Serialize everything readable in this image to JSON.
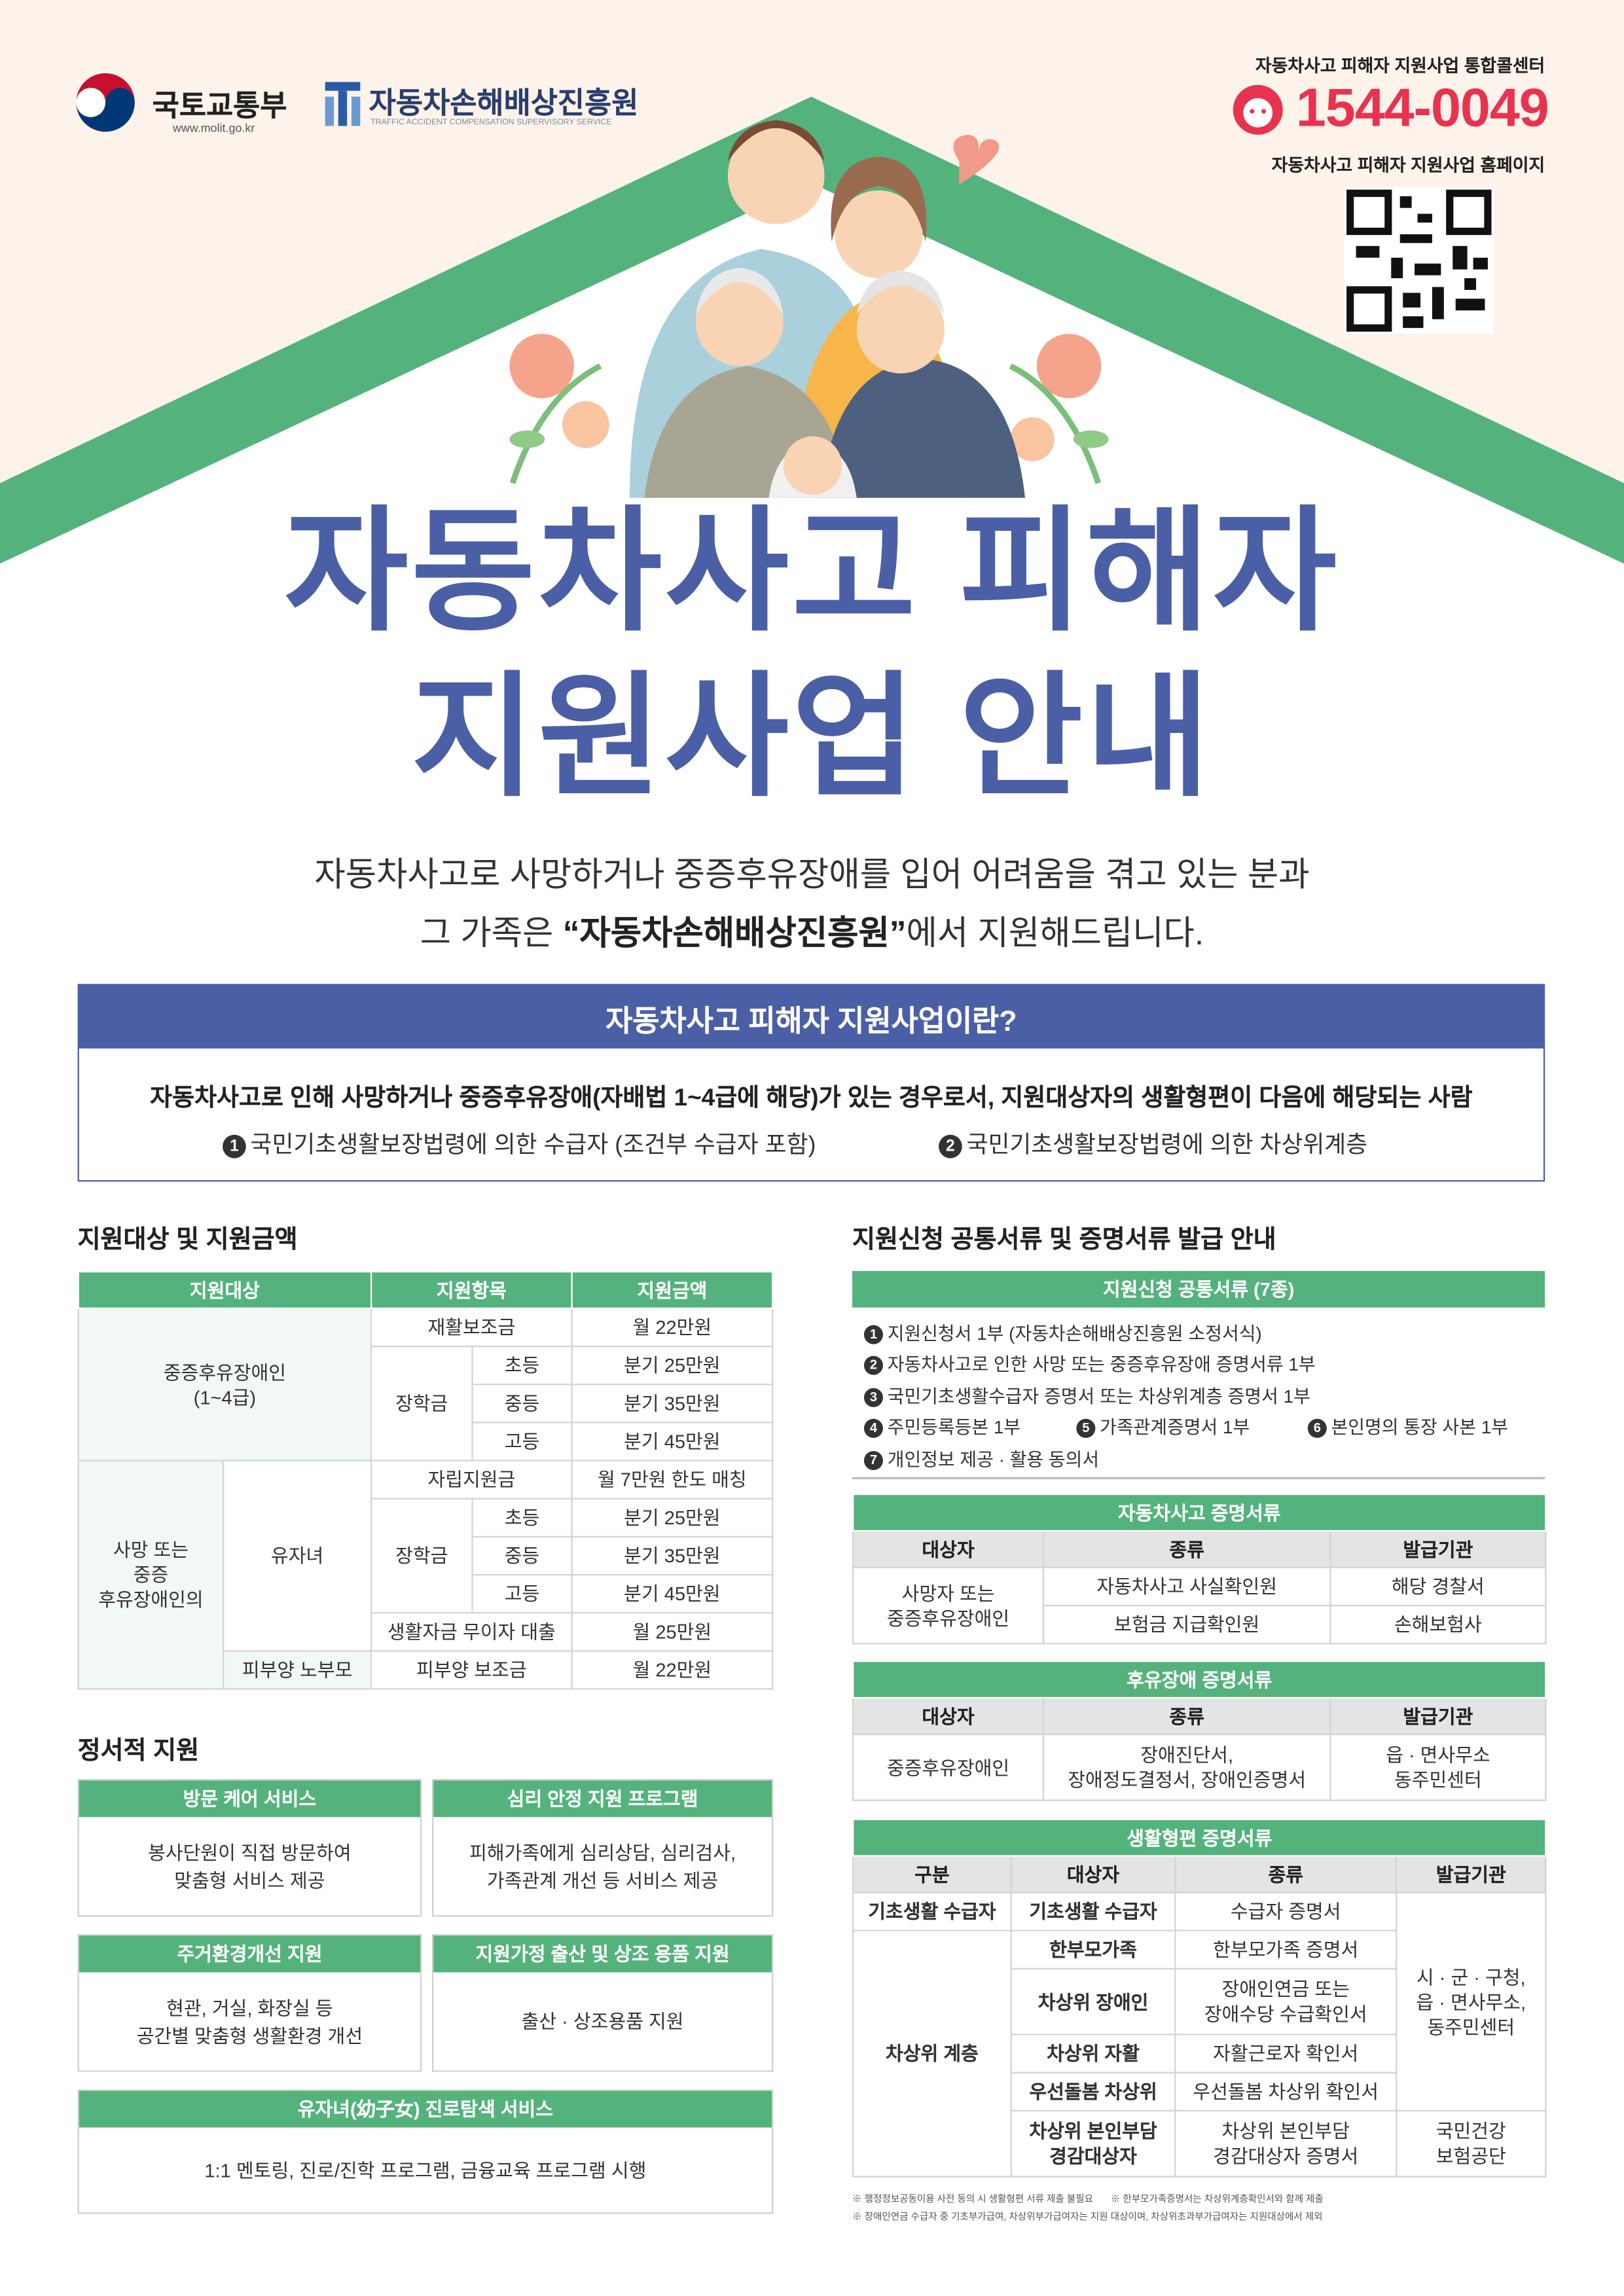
{
  "header": {
    "ministry": "국토교통부",
    "ministry_url": "www.molit.go.kr",
    "agency": "자동차손해배상진흥원",
    "agency_en": "TRAFFIC ACCIDENT COMPENSATION SUPERVISORY SERVICE",
    "callcenter_label": "자동차사고 피해자 지원사업 통합콜센터",
    "phone": "1544-0049",
    "homepage_label": "자동차사고 피해자 지원사업 홈페이지"
  },
  "title": {
    "line1": "자동차사고 피해자",
    "line2": "지원사업 안내"
  },
  "intro": {
    "line1": "자동차사고로 사망하거나 중증후유장애를 입어 어려움을 겪고 있는 분과",
    "line2_prefix": "그 가족은 ",
    "line2_emphasis": "“자동차손해배상진흥원”",
    "line2_suffix": "에서 지원해드립니다."
  },
  "definition": {
    "heading": "자동차사고 피해자 지원사업이란?",
    "text": "자동차사고로 인해 사망하거나 중증후유장애(자배법 1~4급에 해당)가 있는 경우로서, 지원대상자의 생활형편이 다음에  해당되는 사람",
    "items": [
      {
        "number": "1",
        "text": "국민기초생활보장법령에 의한 수급자 (조건부 수급자 포함)"
      },
      {
        "number": "2",
        "text": "국민기초생활보장법령에 의한 차상위계층"
      }
    ]
  },
  "support": {
    "heading": "지원대상 및 지원금액",
    "columns": [
      "지원대상",
      "지원항목",
      "지원금액"
    ],
    "severe": {
      "target": [
        "중증후유장애인",
        "(1~4급)"
      ],
      "rehab": {
        "item": "재활보조금",
        "amount": "월 22만원"
      },
      "scholarship": {
        "item": "장학금",
        "levels": [
          {
            "level": "초등",
            "amount": "분기 25만원"
          },
          {
            "level": "중등",
            "amount": "분기 35만원"
          },
          {
            "level": "고등",
            "amount": "분기 45만원"
          }
        ]
      }
    },
    "bereaved": {
      "target": [
        "사망 또는",
        "중증",
        "후유장애인의"
      ],
      "child": {
        "label": "유자녀",
        "independence": {
          "item": "자립지원금",
          "amount": "월 7만원 한도 매칭"
        },
        "scholarship": {
          "item": "장학금",
          "levels": [
            {
              "level": "초등",
              "amount": "분기 25만원"
            },
            {
              "level": "중등",
              "amount": "분기 35만원"
            },
            {
              "level": "고등",
              "amount": "분기 45만원"
            }
          ]
        },
        "loan": {
          "item": "생활자금 무이자 대출",
          "amount": "월 25만원"
        }
      },
      "parents": {
        "label": "피부양 노부모",
        "item": "피부양 보조금",
        "amount": "월 22만원"
      }
    }
  },
  "emotional": {
    "heading": "정서적 지원",
    "cards": [
      {
        "title": "방문 케어 서비스",
        "lines": [
          "봉사단원이 직접 방문하여",
          "맞춤형 서비스 제공"
        ]
      },
      {
        "title": "심리 안정 지원 프로그램",
        "lines": [
          "피해가족에게 심리상담, 심리검사,",
          "가족관계 개선 등 서비스 제공"
        ]
      },
      {
        "title": "주거환경개선 지원",
        "lines": [
          "현관, 거실, 화장실 등",
          "공간별 맞춤형 생활환경 개선"
        ]
      },
      {
        "title": "지원가정 출산 및 상조 용품 지원",
        "lines": [
          "출산 · 상조용품 지원"
        ]
      },
      {
        "title": "유자녀(幼子女) 진로탐색 서비스",
        "lines": [
          "1:1 멘토링, 진로/진학 프로그램, 금융교육 프로그램 시행"
        ]
      }
    ]
  },
  "documents": {
    "heading": "지원신청 공통서류 및 증명서류 발급 안내",
    "common": {
      "title": "지원신청 공통서류 (7종)",
      "items": [
        {
          "number": "1",
          "text": "지원신청서 1부 (자동차손해배상진흥원 소정서식)"
        },
        {
          "number": "2",
          "text": "자동차사고로 인한 사망 또는 중증후유장애 증명서류 1부"
        },
        {
          "number": "3",
          "text": "국민기초생활수급자 증명서 또는 차상위계층 증명서 1부"
        },
        {
          "number": "4",
          "text": "주민등록등본 1부"
        },
        {
          "number": "5",
          "text": "가족관계증명서 1부"
        },
        {
          "number": "6",
          "text": "본인명의 통장 사본 1부"
        },
        {
          "number": "7",
          "text": "개인정보 제공 · 활용 동의서"
        }
      ]
    },
    "accident": {
      "title": "자동차사고 증명서류",
      "columns": [
        "대상자",
        "종류",
        "발급기관"
      ],
      "target": [
        "사망자 또는",
        "중증후유장애인"
      ],
      "rows": [
        {
          "doc": "자동차사고 사실확인원",
          "issuer": "해당 경찰서"
        },
        {
          "doc": "보험금 지급확인원",
          "issuer": "손해보험사"
        }
      ]
    },
    "disability": {
      "title": "후유장애 증명서류",
      "columns": [
        "대상자",
        "종류",
        "발급기관"
      ],
      "target": "중증후유장애인",
      "doc": [
        "장애진단서,",
        "장애정도결정서, 장애인증명서"
      ],
      "issuer": [
        "읍 · 면사무소",
        "동주민센터"
      ]
    },
    "living": {
      "title": "생활형편 증명서류",
      "columns": [
        "구분",
        "대상자",
        "종류",
        "발급기관"
      ],
      "basic": {
        "category": "기초생활 수급자",
        "target": "기초생활 수급자",
        "doc": "수급자 증명서"
      },
      "near_poor": {
        "category": "차상위 계층",
        "rows": [
          {
            "target": [
              "한부모가족"
            ],
            "doc": [
              "한부모가족 증명서"
            ]
          },
          {
            "target": [
              "차상위 장애인"
            ],
            "doc": [
              "장애인연금 또는",
              "장애수당 수급확인서"
            ]
          },
          {
            "target": [
              "차상위 자활"
            ],
            "doc": [
              "자활근로자 확인서"
            ]
          },
          {
            "target": [
              "우선돌봄 차상위"
            ],
            "doc": [
              "우선돌봄 차상위 확인서"
            ]
          },
          {
            "target": [
              "차상위 본인부담",
              "경감대상자"
            ],
            "doc": [
              "차상위 본인부담",
              "경감대상자 증명서"
            ]
          }
        ]
      },
      "issuers": [
        [
          "시 · 군 · 구청,",
          "읍 · 면사무소,",
          "동주민센터"
        ],
        [
          "국민건강",
          "보험공단"
        ]
      ]
    },
    "notes": [
      "※ 행정정보공동이용 사전 동의 시 생활형편 서류 제출 불필요",
      "※ 한부모가족증명서는 차상위계층확인서와 함께 제출",
      "※ 장애인연금 수급자 중 기초부가급여, 차상위부가급여자는 지원 대상이며, 차상위초과부가급여자는 지원대상에서 제외"
    ]
  }
}
